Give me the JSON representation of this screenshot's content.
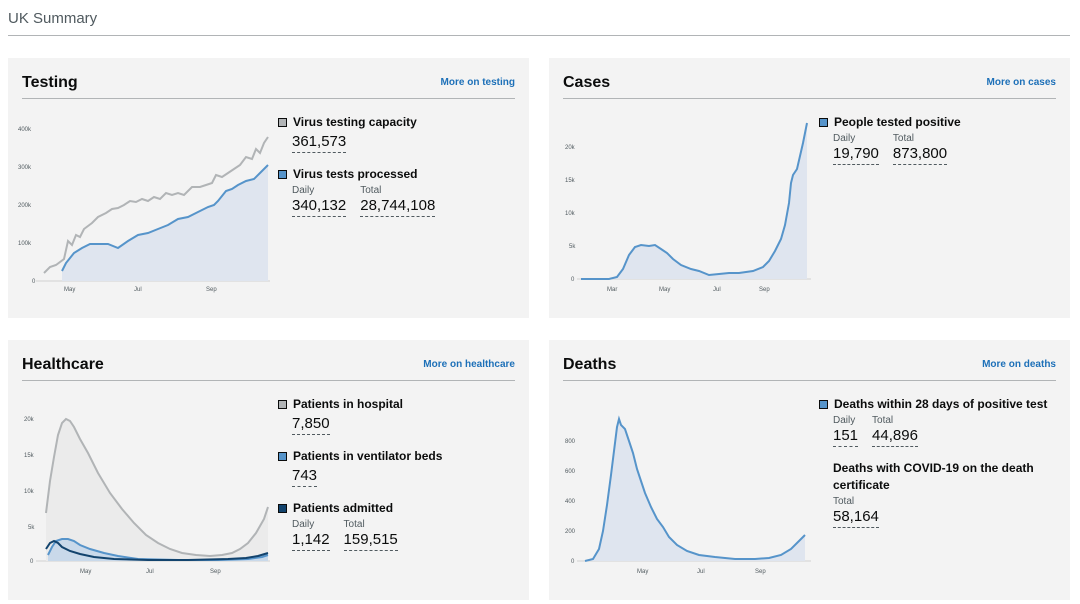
{
  "page": {
    "title": "UK Summary"
  },
  "testing": {
    "title": "Testing",
    "link": "More on testing",
    "metrics": [
      {
        "name": "Virus testing capacity",
        "values": [
          {
            "label": "",
            "value": "361,573"
          }
        ]
      },
      {
        "name": "Virus tests processed",
        "values": [
          {
            "label": "Daily",
            "value": "340,132"
          },
          {
            "label": "Total",
            "value": "28,744,108"
          }
        ]
      }
    ],
    "chart": {
      "y_ticks": [
        "400k",
        "300k",
        "200k",
        "100k",
        "0"
      ],
      "x_ticks": [
        "May",
        "Jul",
        "Sep"
      ]
    }
  },
  "cases": {
    "title": "Cases",
    "link": "More on cases",
    "metrics": [
      {
        "name": "People tested positive",
        "values": [
          {
            "label": "Daily",
            "value": "19,790"
          },
          {
            "label": "Total",
            "value": "873,800"
          }
        ]
      }
    ],
    "chart": {
      "y_ticks": [
        "20k",
        "15k",
        "10k",
        "5k",
        "0"
      ],
      "x_ticks": [
        "Mar",
        "May",
        "Jul",
        "Sep"
      ]
    }
  },
  "healthcare": {
    "title": "Healthcare",
    "link": "More on healthcare",
    "metrics": [
      {
        "name": "Patients in hospital",
        "values": [
          {
            "label": "",
            "value": "7,850"
          }
        ]
      },
      {
        "name": "Patients in ventilator beds",
        "values": [
          {
            "label": "",
            "value": "743"
          }
        ]
      },
      {
        "name": "Patients admitted",
        "values": [
          {
            "label": "Daily",
            "value": "1,142"
          },
          {
            "label": "Total",
            "value": "159,515"
          }
        ]
      }
    ],
    "chart": {
      "y_ticks": [
        "20k",
        "15k",
        "10k",
        "5k",
        "0"
      ],
      "x_ticks": [
        "May",
        "Jul",
        "Sep"
      ]
    }
  },
  "deaths": {
    "title": "Deaths",
    "link": "More on deaths",
    "metrics": [
      {
        "name": "Deaths within 28 days of positive test",
        "values": [
          {
            "label": "Daily",
            "value": "151"
          },
          {
            "label": "Total",
            "value": "44,896"
          }
        ]
      },
      {
        "name": "Deaths with COVID-19 on the death certificate",
        "values": [
          {
            "label": "Total",
            "value": "58,164"
          }
        ]
      }
    ],
    "chart": {
      "y_ticks": [
        "800",
        "600",
        "400",
        "200",
        "0"
      ],
      "x_ticks": [
        "May",
        "Jul",
        "Sep"
      ]
    }
  },
  "colors": {
    "grey_series": "#b1b4b6",
    "blue_series": "#5694ca",
    "navy_series": "#12436d",
    "link": "#1d70b8",
    "card_bg": "#f3f3f3"
  }
}
